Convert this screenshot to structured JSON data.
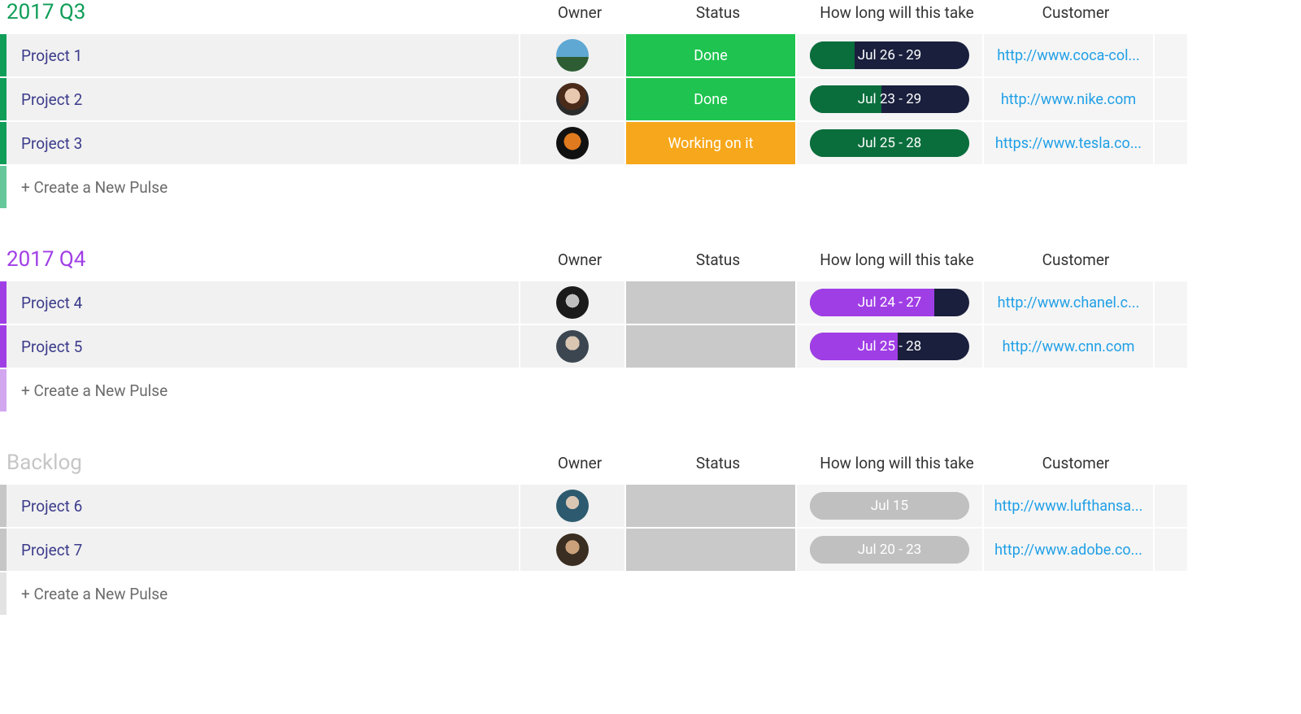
{
  "columns": {
    "owner": "Owner",
    "status": "Status",
    "timeline": "How long will this take",
    "customer": "Customer"
  },
  "new_pulse_label": "+ Create a New Pulse",
  "colors": {
    "row_bg": "#f1f1f1",
    "cell_bg_light": "#f5f5f5",
    "link": "#1f9fe6",
    "name_text": "#3c3c8c",
    "pill_dark": "#1a1f3d"
  },
  "groups": [
    {
      "id": "q3",
      "title": "2017 Q3",
      "title_color": "#0f9d58",
      "stripe_color": "#0f9d58",
      "stripe_light": "#66c89a",
      "rows": [
        {
          "name": "Project 1",
          "avatar_bg": "linear-gradient(to bottom, #5fa8d3 0%, #5fa8d3 55%, #2e5d34 55%, #2e5d34 100%)",
          "status_label": "Done",
          "status_bg": "#1ec44f",
          "timeline_label": "Jul 26 - 29",
          "timeline_fill_pct": 28,
          "timeline_fill_color": "#0a6e3c",
          "timeline_track_color": "#1a1f3d",
          "customer_text": "http://www.coca-col..."
        },
        {
          "name": "Project 2",
          "avatar_bg": "radial-gradient(circle at 50% 40%, #e8c9b0 0 30%, #4a2b1a 30% 55%, #2b2b2b 55% 100%)",
          "status_label": "Done",
          "status_bg": "#1ec44f",
          "timeline_label": "Jul 23 - 29",
          "timeline_fill_pct": 45,
          "timeline_fill_color": "#0a6e3c",
          "timeline_track_color": "#1a1f3d",
          "customer_text": "http://www.nike.com"
        },
        {
          "name": "Project 3",
          "avatar_bg": "radial-gradient(circle at 50% 45%, #e07a1f 0 35%, #111111 35% 100%)",
          "status_label": "Working on it",
          "status_bg": "#f7a71b",
          "timeline_label": "Jul 25 - 28",
          "timeline_fill_pct": 100,
          "timeline_fill_color": "#0a6e3c",
          "timeline_track_color": "#0a6e3c",
          "customer_text": "https://www.tesla.co..."
        }
      ]
    },
    {
      "id": "q4",
      "title": "2017 Q4",
      "title_color": "#a03ee6",
      "stripe_color": "#a03ee6",
      "stripe_light": "#d3a7f0",
      "rows": [
        {
          "name": "Project 4",
          "avatar_bg": "radial-gradient(circle at 50% 45%, #bfbfbf 0 28%, #1a1a1a 28% 100%)",
          "status_label": "",
          "status_bg": "#c9c9c9",
          "timeline_label": "Jul 24 - 27",
          "timeline_fill_pct": 78,
          "timeline_fill_color": "#a03ee6",
          "timeline_track_color": "#1a1f3d",
          "customer_text": "http://www.chanel.c..."
        },
        {
          "name": "Project 5",
          "avatar_bg": "radial-gradient(circle at 50% 40%, #d9c6b3 0 28%, #3b4650 28% 100%)",
          "status_label": "",
          "status_bg": "#c9c9c9",
          "timeline_label": "Jul 25 - 28",
          "timeline_fill_pct": 55,
          "timeline_fill_color": "#a03ee6",
          "timeline_track_color": "#1a1f3d",
          "customer_text": "http://www.cnn.com"
        }
      ]
    },
    {
      "id": "backlog",
      "title": "Backlog",
      "title_color": "#c6c6c6",
      "stripe_color": "#c6c6c6",
      "stripe_light": "#e3e3e3",
      "rows": [
        {
          "name": "Project 6",
          "avatar_bg": "radial-gradient(circle at 50% 40%, #d9c6b3 0 26%, #2d5a6e 26% 100%)",
          "status_label": "",
          "status_bg": "#c9c9c9",
          "timeline_label": "Jul 15",
          "timeline_fill_pct": 100,
          "timeline_fill_color": "#c0c0c0",
          "timeline_track_color": "#c0c0c0",
          "customer_text": "http://www.lufthansa..."
        },
        {
          "name": "Project 7",
          "avatar_bg": "radial-gradient(circle at 50% 42%, #caa17a 0 28%, #3a2d21 28% 100%)",
          "status_label": "",
          "status_bg": "#c9c9c9",
          "timeline_label": "Jul 20 - 23",
          "timeline_fill_pct": 100,
          "timeline_fill_color": "#c0c0c0",
          "timeline_track_color": "#c0c0c0",
          "customer_text": "http://www.adobe.co..."
        }
      ]
    }
  ]
}
